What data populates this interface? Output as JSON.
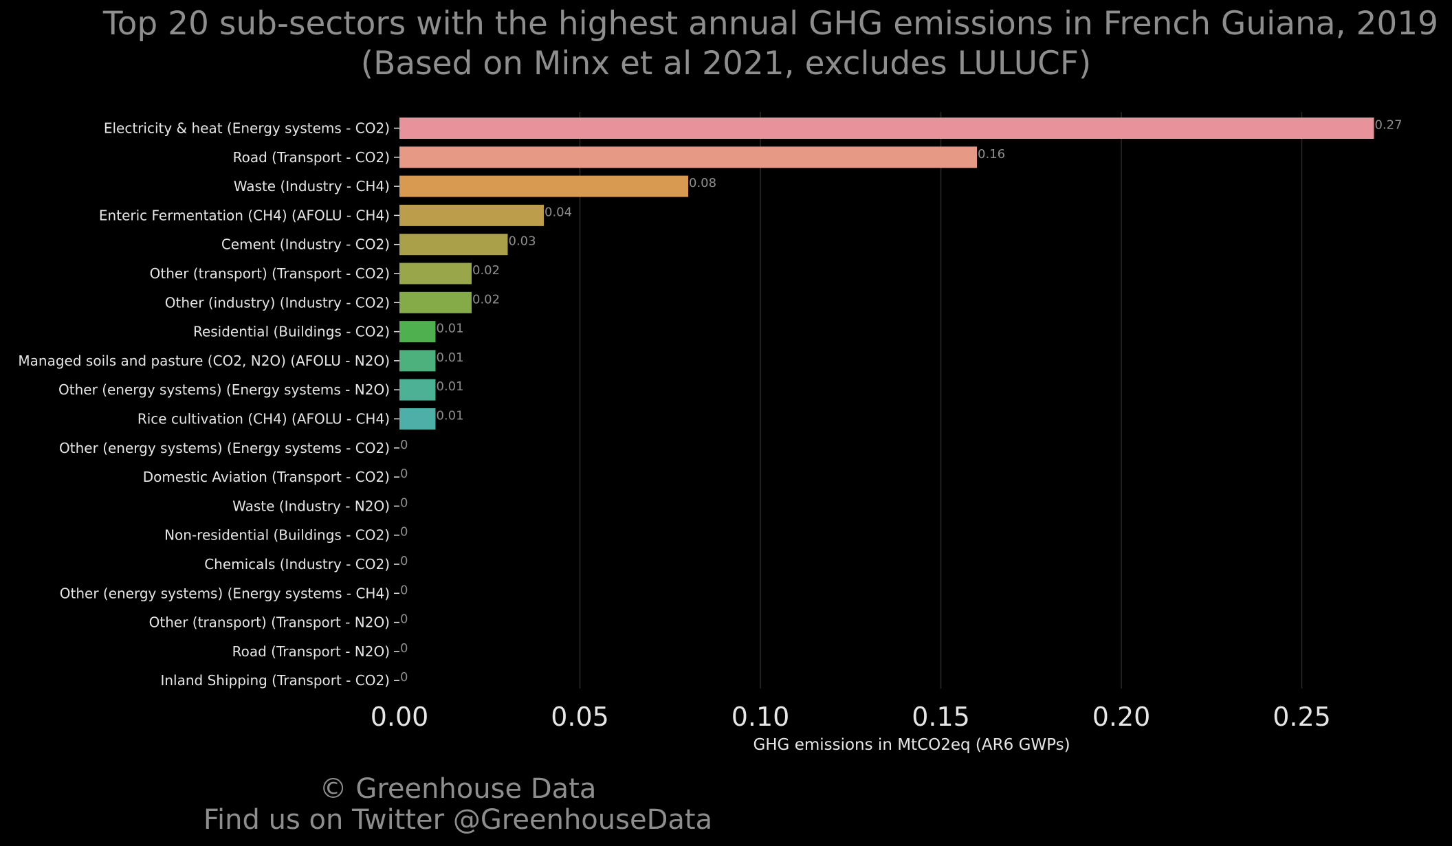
{
  "title_line1": "Top 20 sub-sectors with the highest annual GHG emissions in French Guiana, 2019",
  "title_line2": "(Based on Minx et al 2021, excludes LULUCF)",
  "footer_line1": "© Greenhouse Data",
  "footer_line2": "Find us on Twitter @GreenhouseData",
  "colors": {
    "background": "#000000",
    "grid": "#2a2a2a",
    "label_text": "#e6e6e6",
    "value_text": "#8e8e8e"
  },
  "chart_data": {
    "type": "bar",
    "orientation": "horizontal",
    "xlabel": "GHG emissions in MtCO2eq (AR6 GWPs)",
    "ylabel": "",
    "xlim": [
      0,
      0.28
    ],
    "xticks": [
      "0.00",
      "0.05",
      "0.10",
      "0.15",
      "0.20",
      "0.25"
    ],
    "xtick_values": [
      0,
      0.05,
      0.1,
      0.15,
      0.2,
      0.25
    ],
    "grid": "vertical",
    "categories": [
      "Electricity & heat (Energy systems - CO2)",
      "Road (Transport - CO2)",
      "Waste (Industry - CH4)",
      "Enteric Fermentation (CH4) (AFOLU - CH4)",
      "Cement (Industry - CO2)",
      "Other (transport) (Transport - CO2)",
      "Other (industry) (Industry - CO2)",
      "Residential (Buildings - CO2)",
      "Managed soils and pasture (CO2, N2O) (AFOLU - N2O)",
      "Other (energy systems) (Energy systems - N2O)",
      "Rice cultivation (CH4) (AFOLU - CH4)",
      "Other (energy systems) (Energy systems - CO2)",
      "Domestic Aviation (Transport - CO2)",
      "Waste (Industry - N2O)",
      "Non-residential (Buildings - CO2)",
      "Chemicals (Industry - CO2)",
      "Other (energy systems) (Energy systems - CH4)",
      "Other (transport) (Transport - N2O)",
      "Road (Transport - N2O)",
      "Inland Shipping (Transport - CO2)"
    ],
    "values": [
      0.27,
      0.16,
      0.08,
      0.04,
      0.03,
      0.02,
      0.02,
      0.01,
      0.01,
      0.01,
      0.01,
      0,
      0,
      0,
      0,
      0,
      0,
      0,
      0,
      0
    ],
    "value_labels": [
      "0.27",
      "0.16",
      "0.08",
      "0.04",
      "0.03",
      "0.02",
      "0.02",
      "0.01",
      "0.01",
      "0.01",
      "0.01",
      "0",
      "0",
      "0",
      "0",
      "0",
      "0",
      "0",
      "0",
      "0"
    ],
    "bar_colors": [
      "#e8929b",
      "#e69a85",
      "#d89950",
      "#bb9d4c",
      "#aba04a",
      "#9aa64a",
      "#85aa48",
      "#4eb04f",
      "#4cb17d",
      "#4cb195",
      "#4eaea8",
      "#4aa9b8",
      "#4ba4c4",
      "#5a9fd0",
      "#7f97dc",
      "#a98ae2",
      "#c47fde",
      "#d97cc8",
      "#e17fae",
      "#e38aa0"
    ]
  }
}
